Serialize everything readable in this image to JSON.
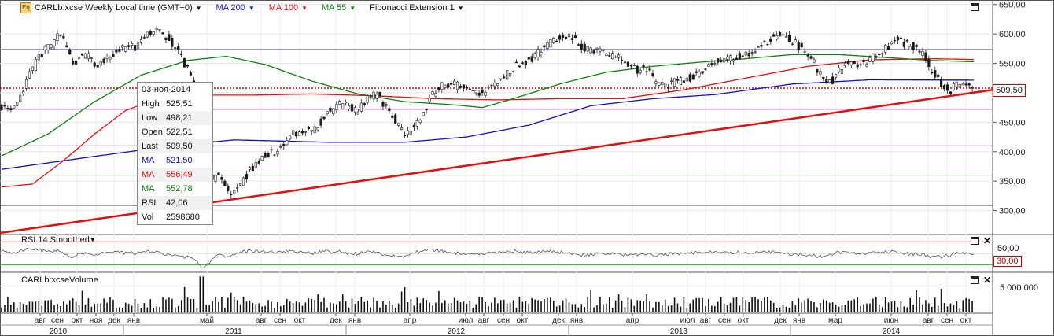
{
  "header": {
    "symbol_title": "CARLb:xcse Weekly Local time (GMT+0)",
    "ma200": "MA 200",
    "ma100": "MA 100",
    "ma55": "MA 55",
    "fib": "Fibonacci Extension 1"
  },
  "colors": {
    "up": "#1a1a1a",
    "down": "#1a1a1a",
    "ma200": "#1010c8",
    "ma100": "#e01010",
    "ma55": "#108010",
    "trend": "#e01010",
    "rsi": "#555555"
  },
  "infobox": {
    "date": "03-ноя-2014",
    "rows": [
      {
        "k": "High",
        "v": "525,51",
        "color": "#111111"
      },
      {
        "k": "Low",
        "v": "498,21",
        "color": "#111111"
      },
      {
        "k": "Open",
        "v": "522,51",
        "color": "#111111"
      },
      {
        "k": "Last",
        "v": "509,50",
        "color": "#111111"
      },
      {
        "k": "MA",
        "v": "521,50",
        "color": "#1010c8"
      },
      {
        "k": "MA",
        "v": "556,49",
        "color": "#e01010"
      },
      {
        "k": "MA",
        "v": "552,78",
        "color": "#108010"
      },
      {
        "k": "RSI",
        "v": "42,06",
        "color": "#111111"
      },
      {
        "k": "Vol",
        "v": "2598680",
        "color": "#111111"
      }
    ]
  },
  "rsi_pane": {
    "label": "RSI 14 Smoothed",
    "level_hi": "50,00",
    "level_lo": "30,00"
  },
  "volume_pane": {
    "label": "CARLb:xcseVolume",
    "tick": "5 000 000"
  },
  "price_axis": {
    "labels": [
      "650,00",
      "600,00",
      "550,00",
      "500,00",
      "450,00",
      "400,00",
      "350,00",
      "300,00"
    ],
    "last": "509,50"
  },
  "chart_data": {
    "type": "candlestick",
    "title": "CARLb:xcse Weekly Local time (GMT+0)",
    "ylim": [
      262,
      655
    ],
    "months": [
      {
        "label": "авг",
        "x": 51
      },
      {
        "label": "сен",
        "x": 73
      },
      {
        "label": "окт",
        "x": 98
      },
      {
        "label": "ноя",
        "x": 122
      },
      {
        "label": "дек",
        "x": 145
      },
      {
        "label": "янв",
        "x": 170
      },
      {
        "label": "май",
        "x": 263
      },
      {
        "label": "авг",
        "x": 332
      },
      {
        "label": "сен",
        "x": 356
      },
      {
        "label": "окт",
        "x": 381
      },
      {
        "label": "дек",
        "x": 427
      },
      {
        "label": "янв",
        "x": 451
      },
      {
        "label": "апр",
        "x": 521
      },
      {
        "label": "июл",
        "x": 592
      },
      {
        "label": "авг",
        "x": 615
      },
      {
        "label": "сен",
        "x": 640
      },
      {
        "label": "окт",
        "x": 664
      },
      {
        "label": "дек",
        "x": 710
      },
      {
        "label": "янв",
        "x": 733
      },
      {
        "label": "апр",
        "x": 804
      },
      {
        "label": "июл",
        "x": 874
      },
      {
        "label": "авг",
        "x": 897
      },
      {
        "label": "сен",
        "x": 921
      },
      {
        "label": "окт",
        "x": 945
      },
      {
        "label": "дек",
        "x": 992
      },
      {
        "label": "янв",
        "x": 1016
      },
      {
        "label": "мар",
        "x": 1062
      },
      {
        "label": "июн",
        "x": 1133
      },
      {
        "label": "авг",
        "x": 1180
      },
      {
        "label": "сен",
        "x": 1204
      },
      {
        "label": "окт",
        "x": 1228
      }
    ],
    "years": [
      {
        "label": "2010",
        "x": 74
      },
      {
        "label": "2011",
        "x": 297
      },
      {
        "label": "2012",
        "x": 580
      },
      {
        "label": "2013",
        "x": 863
      },
      {
        "label": "2014",
        "x": 1133
      }
    ],
    "close_anchors": [
      [
        0,
        478
      ],
      [
        6,
        465
      ],
      [
        12,
        490
      ],
      [
        18,
        530
      ],
      [
        24,
        560
      ],
      [
        30,
        580
      ],
      [
        36,
        595
      ],
      [
        40,
        590
      ],
      [
        46,
        548
      ],
      [
        54,
        565
      ],
      [
        62,
        545
      ],
      [
        70,
        562
      ],
      [
        78,
        575
      ],
      [
        86,
        578
      ],
      [
        92,
        590
      ],
      [
        98,
        610
      ],
      [
        104,
        600
      ],
      [
        110,
        585
      ],
      [
        116,
        560
      ],
      [
        122,
        530
      ],
      [
        126,
        480
      ],
      [
        130,
        385
      ],
      [
        134,
        350
      ],
      [
        140,
        360
      ],
      [
        146,
        330
      ],
      [
        152,
        340
      ],
      [
        158,
        360
      ],
      [
        164,
        380
      ],
      [
        170,
        395
      ],
      [
        176,
        400
      ],
      [
        182,
        412
      ],
      [
        188,
        430
      ],
      [
        194,
        438
      ],
      [
        200,
        435
      ],
      [
        206,
        450
      ],
      [
        212,
        470
      ],
      [
        218,
        480
      ],
      [
        224,
        478
      ],
      [
        230,
        470
      ],
      [
        236,
        490
      ],
      [
        242,
        498
      ],
      [
        248,
        475
      ],
      [
        254,
        455
      ],
      [
        260,
        430
      ],
      [
        266,
        440
      ],
      [
        272,
        468
      ],
      [
        278,
        495
      ],
      [
        284,
        512
      ],
      [
        290,
        515
      ],
      [
        296,
        510
      ],
      [
        302,
        500
      ],
      [
        308,
        498
      ],
      [
        314,
        505
      ],
      [
        320,
        520
      ],
      [
        326,
        532
      ],
      [
        332,
        548
      ],
      [
        338,
        552
      ],
      [
        344,
        562
      ],
      [
        350,
        578
      ],
      [
        356,
        590
      ],
      [
        362,
        598
      ],
      [
        368,
        595
      ],
      [
        374,
        578
      ],
      [
        380,
        572
      ],
      [
        386,
        568
      ],
      [
        392,
        565
      ],
      [
        398,
        560
      ],
      [
        404,
        548
      ],
      [
        410,
        538
      ],
      [
        416,
        540
      ],
      [
        422,
        520
      ],
      [
        428,
        510
      ],
      [
        434,
        518
      ],
      [
        440,
        520
      ],
      [
        446,
        528
      ],
      [
        452,
        540
      ],
      [
        458,
        548
      ],
      [
        464,
        555
      ],
      [
        470,
        560
      ],
      [
        476,
        562
      ],
      [
        482,
        568
      ],
      [
        488,
        575
      ],
      [
        494,
        588
      ],
      [
        500,
        600
      ],
      [
        506,
        595
      ],
      [
        512,
        585
      ],
      [
        518,
        570
      ],
      [
        524,
        550
      ],
      [
        530,
        520
      ],
      [
        536,
        522
      ],
      [
        542,
        545
      ],
      [
        548,
        550
      ],
      [
        554,
        548
      ],
      [
        560,
        558
      ],
      [
        566,
        570
      ],
      [
        572,
        578
      ],
      [
        578,
        590
      ],
      [
        584,
        582
      ],
      [
        590,
        575
      ],
      [
        596,
        560
      ],
      [
        600,
        535
      ],
      [
        604,
        520
      ],
      [
        608,
        510
      ],
      [
        612,
        502
      ],
      [
        616,
        515
      ],
      [
        620,
        513
      ],
      [
        624,
        512
      ],
      [
        627,
        509.5
      ]
    ],
    "trendline": {
      "x0": 0,
      "y0": 262,
      "x1": 1262,
      "y1": 505
    },
    "hlines": [
      {
        "y": 508,
        "style": "dotted",
        "color": "#cc0000"
      },
      {
        "y": 472,
        "color": "#cc66cc"
      },
      {
        "y": 574,
        "color": "#8888cc"
      },
      {
        "y": 410,
        "color": "#aa88aa"
      },
      {
        "y": 309,
        "color": "#000000"
      },
      {
        "y": 360,
        "color": "#88aa88"
      }
    ],
    "ma_anchors": {
      "ma200": [
        [
          0,
          370
        ],
        [
          60,
          392
        ],
        [
          110,
          410
        ],
        [
          150,
          420
        ],
        [
          210,
          416
        ],
        [
          260,
          416
        ],
        [
          300,
          425
        ],
        [
          340,
          445
        ],
        [
          380,
          478
        ],
        [
          420,
          490
        ],
        [
          460,
          497
        ],
        [
          510,
          515
        ],
        [
          560,
          522
        ],
        [
          627,
          521.5
        ]
      ],
      "ma100": [
        [
          0,
          340
        ],
        [
          20,
          345
        ],
        [
          40,
          385
        ],
        [
          60,
          430
        ],
        [
          80,
          470
        ],
        [
          100,
          490
        ],
        [
          120,
          496
        ],
        [
          160,
          496
        ],
        [
          200,
          498
        ],
        [
          240,
          495
        ],
        [
          280,
          490
        ],
        [
          320,
          488
        ],
        [
          360,
          490
        ],
        [
          400,
          490
        ],
        [
          440,
          505
        ],
        [
          480,
          525
        ],
        [
          520,
          545
        ],
        [
          560,
          556
        ],
        [
          600,
          558
        ],
        [
          627,
          556.5
        ]
      ],
      "ma55": [
        [
          0,
          393
        ],
        [
          30,
          430
        ],
        [
          60,
          485
        ],
        [
          90,
          530
        ],
        [
          120,
          555
        ],
        [
          145,
          562
        ],
        [
          170,
          548
        ],
        [
          200,
          520
        ],
        [
          230,
          498
        ],
        [
          260,
          485
        ],
        [
          290,
          480
        ],
        [
          310,
          475
        ],
        [
          330,
          490
        ],
        [
          360,
          515
        ],
        [
          390,
          535
        ],
        [
          420,
          545
        ],
        [
          450,
          552
        ],
        [
          480,
          558
        ],
        [
          510,
          565
        ],
        [
          540,
          565
        ],
        [
          570,
          560
        ],
        [
          600,
          555
        ],
        [
          627,
          552.8
        ]
      ]
    },
    "rsi_range": [
      20,
      80
    ],
    "volume_max": 7000000
  }
}
